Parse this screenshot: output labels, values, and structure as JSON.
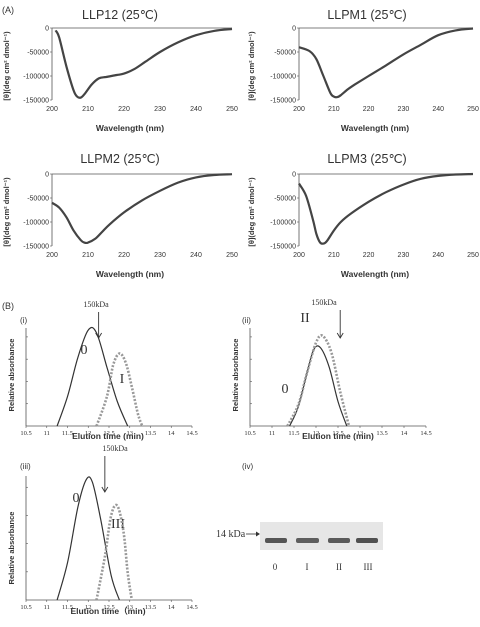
{
  "panel_a_label": "(A)",
  "panel_b_label": "(B)",
  "cd_panels": [
    {
      "title": "LLP12  (25℃)",
      "ylabel": "[θ](deg cm² dmol⁻¹)",
      "xlabel": "Wavelength (nm)"
    },
    {
      "title": "LLPM1  (25℃)",
      "ylabel": "[θ](deg cm² dmol⁻¹)",
      "xlabel": "Wavelength (nm)"
    },
    {
      "title": "LLPM2  (25℃)",
      "ylabel": "[θ](deg cm² dmol⁻¹)",
      "xlabel": "Wavelength (nm)"
    },
    {
      "title": "LLPM3  (25℃)",
      "ylabel": "[θ](deg cm² dmol⁻¹)",
      "xlabel": "Wavelength (nm)"
    }
  ],
  "sec_panels": [
    {
      "sub": "(i)",
      "arrow_label": "150kDa",
      "peak0": "0",
      "peak1": "I",
      "xlabel": "Elution time  (min)",
      "ylabel": "Relative  absorbance"
    },
    {
      "sub": "(ii)",
      "arrow_label": "150kDa",
      "peak0": "0",
      "peak1": "II",
      "xlabel": "Elution time  (min)",
      "ylabel": "Relative  absorbance"
    },
    {
      "sub": "(iii)",
      "arrow_label": "150kDa",
      "peak0": "0",
      "peak1": "III",
      "xlabel": "Elution time（min)",
      "ylabel": "Relative  absorbance"
    }
  ],
  "gel": {
    "sub": "(iv)",
    "marker": "14 kDa",
    "lanes": [
      "0",
      "I",
      "II",
      "III"
    ]
  },
  "chart_data": [
    {
      "type": "line",
      "title": "LLP12  (25℃)",
      "xlabel": "Wavelength (nm)",
      "ylabel": "[θ](deg cm² dmol⁻¹)",
      "xlim": [
        200,
        250
      ],
      "ylim": [
        -150000,
        0
      ],
      "xticks": [
        200,
        210,
        220,
        230,
        240,
        250
      ],
      "yticks": [
        0,
        -50000,
        -100000,
        -150000
      ],
      "x": [
        201,
        202,
        204,
        206,
        207,
        208,
        209,
        211,
        213,
        215,
        218,
        220,
        223,
        226,
        230,
        235,
        240,
        245,
        250
      ],
      "y": [
        -5000,
        -20000,
        -80000,
        -130000,
        -143000,
        -145000,
        -138000,
        -118000,
        -105000,
        -102000,
        -98000,
        -95000,
        -85000,
        -70000,
        -50000,
        -30000,
        -15000,
        -6000,
        -2000
      ]
    },
    {
      "type": "line",
      "title": "LLPM1  (25℃)",
      "xlabel": "Wavelength (nm)",
      "ylabel": "[θ](deg cm² dmol⁻¹)",
      "xlim": [
        200,
        250
      ],
      "ylim": [
        -150000,
        0
      ],
      "xticks": [
        200,
        210,
        220,
        230,
        240,
        250
      ],
      "yticks": [
        0,
        -50000,
        -100000,
        -150000
      ],
      "x": [
        200,
        203,
        205,
        207,
        209,
        210,
        211,
        212,
        214,
        216,
        220,
        225,
        230,
        235,
        240,
        245,
        250
      ],
      "y": [
        -40000,
        -48000,
        -65000,
        -100000,
        -135000,
        -143000,
        -144000,
        -140000,
        -128000,
        -118000,
        -100000,
        -78000,
        -55000,
        -35000,
        -15000,
        -5000,
        -1000
      ]
    },
    {
      "type": "line",
      "title": "LLPM2  (25℃)",
      "xlabel": "Wavelength (nm)",
      "ylabel": "[θ](deg cm² dmol⁻¹)",
      "xlim": [
        200,
        250
      ],
      "ylim": [
        -150000,
        0
      ],
      "xticks": [
        200,
        210,
        220,
        230,
        240,
        250
      ],
      "yticks": [
        0,
        -50000,
        -100000,
        -150000
      ],
      "x": [
        200,
        202,
        204,
        206,
        208,
        209,
        210,
        212,
        214,
        216,
        220,
        225,
        230,
        235,
        240,
        245,
        250
      ],
      "y": [
        -60000,
        -70000,
        -90000,
        -118000,
        -138000,
        -143000,
        -143000,
        -135000,
        -120000,
        -105000,
        -80000,
        -55000,
        -35000,
        -18000,
        -7000,
        -2000,
        -500
      ]
    },
    {
      "type": "line",
      "title": "LLPM3  (25℃)",
      "xlabel": "Wavelength (nm)",
      "ylabel": "[θ](deg cm² dmol⁻¹)",
      "xlim": [
        200,
        250
      ],
      "ylim": [
        -150000,
        0
      ],
      "xticks": [
        200,
        210,
        220,
        230,
        240,
        250
      ],
      "yticks": [
        0,
        -50000,
        -100000,
        -150000
      ],
      "x": [
        200,
        202,
        204,
        205,
        206,
        207,
        208,
        210,
        212,
        215,
        220,
        225,
        230,
        235,
        240,
        245,
        250
      ],
      "y": [
        -20000,
        -45000,
        -95000,
        -125000,
        -142000,
        -145000,
        -140000,
        -118000,
        -100000,
        -82000,
        -58000,
        -38000,
        -22000,
        -10000,
        -4000,
        -1000,
        0
      ]
    },
    {
      "type": "line",
      "title": "",
      "xlabel": "Elution time  (min)",
      "ylabel": "Relative  absorbance",
      "xlim": [
        10.5,
        14.5
      ],
      "ylim": [
        0,
        1
      ],
      "xticks": [
        10.5,
        11,
        11.5,
        12,
        12.5,
        13,
        13.5,
        14,
        14.5
      ],
      "series": [
        {
          "name": "0",
          "x": [
            11.25,
            11.5,
            11.75,
            12.0,
            12.2,
            12.45,
            12.7,
            12.95
          ],
          "y": [
            0,
            0.3,
            0.7,
            0.98,
            0.95,
            0.6,
            0.25,
            0
          ]
        },
        {
          "name": "I",
          "x": [
            12.2,
            12.45,
            12.6,
            12.75,
            12.9,
            13.05,
            13.2,
            13.3
          ],
          "y": [
            0,
            0.3,
            0.62,
            0.74,
            0.65,
            0.4,
            0.12,
            0
          ]
        }
      ]
    },
    {
      "type": "line",
      "title": "",
      "xlabel": "Elution time  (min)",
      "ylabel": "Relative  absorbance",
      "xlim": [
        10.5,
        14.5
      ],
      "ylim": [
        0,
        1
      ],
      "xticks": [
        10.5,
        11,
        11.5,
        12,
        12.5,
        13,
        13.5,
        14,
        14.5
      ],
      "series": [
        {
          "name": "0",
          "x": [
            11.4,
            11.6,
            11.8,
            11.95,
            12.1,
            12.3,
            12.5,
            12.7
          ],
          "y": [
            0,
            0.2,
            0.55,
            0.78,
            0.8,
            0.6,
            0.25,
            0
          ]
        },
        {
          "name": "II",
          "x": [
            11.35,
            11.6,
            11.8,
            12.0,
            12.15,
            12.35,
            12.55,
            12.75
          ],
          "y": [
            0,
            0.22,
            0.55,
            0.85,
            0.92,
            0.75,
            0.35,
            0
          ]
        }
      ]
    },
    {
      "type": "line",
      "title": "",
      "xlabel": "Elution time（min)",
      "ylabel": "Relative  absorbance",
      "xlim": [
        10.5,
        14.5
      ],
      "ylim": [
        0,
        1
      ],
      "xticks": [
        10.5,
        11,
        11.5,
        12,
        12.5,
        13,
        13.5,
        14,
        14.5
      ],
      "series": [
        {
          "name": "0",
          "x": [
            11.25,
            11.5,
            11.75,
            11.95,
            12.1,
            12.3,
            12.55,
            12.75
          ],
          "y": [
            0,
            0.3,
            0.75,
            0.97,
            0.95,
            0.65,
            0.2,
            0
          ]
        },
        {
          "name": "III",
          "x": [
            12.2,
            12.4,
            12.55,
            12.7,
            12.85,
            12.95,
            13.05
          ],
          "y": [
            0,
            0.35,
            0.68,
            0.76,
            0.55,
            0.22,
            0
          ]
        }
      ]
    }
  ]
}
